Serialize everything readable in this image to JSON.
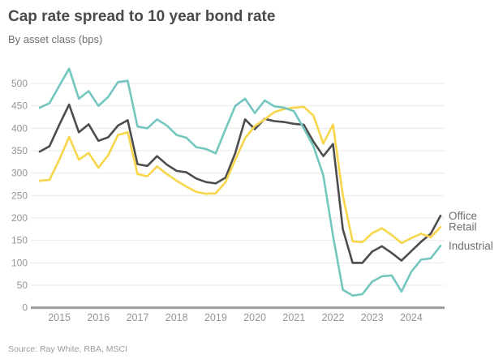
{
  "header": {
    "title": "Cap rate spread to 10 year bond rate",
    "subtitle": "By asset class (bps)"
  },
  "footer": {
    "source": "Source: Ray White, RBA, MSCI"
  },
  "colors": {
    "office": "#4d4d4d",
    "retail": "#f8d64b",
    "industrial": "#74c7bf",
    "title_text": "#4a4a4a",
    "subtitle_text": "#6e6e6e",
    "tick_text": "#949494",
    "series_label_text": "#6e6e6e",
    "gridline": "#eaeaea",
    "axis_line": "#9a9a9a",
    "background": "#ffffff"
  },
  "chart_data": {
    "type": "line",
    "title": "Cap rate spread to 10 year bond rate",
    "subtitle": "By asset class (bps)",
    "unit": "bps",
    "grid": "horizontal",
    "legend_position": "right-end-labels",
    "x_frequency": "quarterly",
    "x": [
      "2014-Q3",
      "2014-Q4",
      "2015-Q1",
      "2015-Q2",
      "2015-Q3",
      "2015-Q4",
      "2016-Q1",
      "2016-Q2",
      "2016-Q3",
      "2016-Q4",
      "2017-Q1",
      "2017-Q2",
      "2017-Q3",
      "2017-Q4",
      "2018-Q1",
      "2018-Q2",
      "2018-Q3",
      "2018-Q4",
      "2019-Q1",
      "2019-Q2",
      "2019-Q3",
      "2019-Q4",
      "2020-Q1",
      "2020-Q2",
      "2020-Q3",
      "2020-Q4",
      "2021-Q1",
      "2021-Q2",
      "2021-Q3",
      "2021-Q4",
      "2022-Q1",
      "2022-Q2",
      "2022-Q3",
      "2022-Q4",
      "2023-Q1",
      "2023-Q2",
      "2023-Q3",
      "2023-Q4",
      "2024-Q1",
      "2024-Q2",
      "2024-Q3",
      "2024-Q4"
    ],
    "x_tick_labels": [
      "2015",
      "2016",
      "2017",
      "2018",
      "2019",
      "2020",
      "2021",
      "2022",
      "2023",
      "2024"
    ],
    "y_ticks": [
      0,
      50,
      100,
      150,
      200,
      250,
      300,
      350,
      400,
      450,
      500
    ],
    "ylim": [
      0,
      545
    ],
    "series": [
      {
        "name": "Office",
        "color": "#4d4d4d",
        "values": [
          348,
          360,
          408,
          453,
          391,
          409,
          372,
          380,
          406,
          418,
          320,
          316,
          338,
          319,
          305,
          302,
          288,
          280,
          277,
          290,
          345,
          420,
          398,
          421,
          416,
          414,
          410,
          408,
          370,
          338,
          365,
          175,
          100,
          100,
          125,
          137,
          122,
          105,
          126,
          147,
          165,
          205
        ]
      },
      {
        "name": "Retail",
        "color": "#f8d64b",
        "values": [
          283,
          285,
          330,
          381,
          330,
          345,
          312,
          340,
          385,
          391,
          298,
          293,
          315,
          298,
          283,
          270,
          258,
          254,
          255,
          280,
          330,
          378,
          405,
          420,
          436,
          443,
          446,
          448,
          428,
          366,
          408,
          250,
          148,
          146,
          166,
          177,
          162,
          144,
          155,
          165,
          157,
          180
        ]
      },
      {
        "name": "Industrial",
        "color": "#74c7bf",
        "values": [
          446,
          456,
          495,
          533,
          466,
          483,
          450,
          470,
          503,
          506,
          404,
          400,
          420,
          406,
          385,
          379,
          358,
          354,
          344,
          398,
          450,
          466,
          434,
          462,
          449,
          446,
          438,
          400,
          360,
          295,
          160,
          40,
          27,
          30,
          58,
          70,
          72,
          36,
          80,
          107,
          110,
          138
        ]
      }
    ]
  }
}
